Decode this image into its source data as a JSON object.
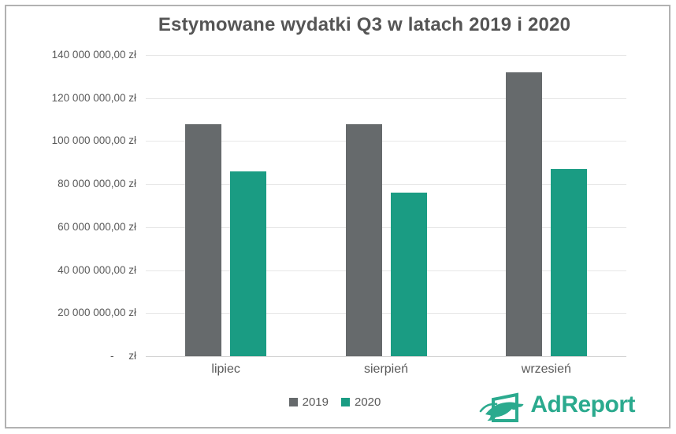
{
  "chart_data": {
    "type": "bar",
    "title": "Estymowane wydatki Q3 w latach 2019 i 2020",
    "categories": [
      "lipiec",
      "sierpień",
      "wrzesień"
    ],
    "series": [
      {
        "name": "2019",
        "color": "#666a6c",
        "values": [
          108000000,
          108000000,
          132000000
        ]
      },
      {
        "name": "2020",
        "color": "#1a9c83",
        "values": [
          86000000,
          76000000,
          87000000
        ]
      }
    ],
    "ylabel": "",
    "xlabel": "",
    "ylim": [
      0,
      140000000
    ],
    "y_tick_step": 20000000,
    "y_tick_labels": [
      "140 000 000,00 zł",
      "120 000 000,00 zł",
      "100 000 000,00 zł",
      "80 000 000,00 zł",
      "60 000 000,00 zł",
      "40 000 000,00 zł",
      "20 000 000,00 zł",
      "-     zł"
    ],
    "grid": true,
    "legend_position": "bottom",
    "legend_entries": [
      "2019",
      "2020"
    ]
  },
  "branding": {
    "logo_text": "AdReport",
    "logo_color": "#2baa8e"
  },
  "colors": {
    "text": "#595959",
    "title": "#555555",
    "gridline": "#e7e7e7",
    "axis_line": "#d3d3d3",
    "border": "#b2b2b2",
    "background": "#ffffff",
    "bar_2019": "#666a6c",
    "bar_2020": "#1a9c83"
  }
}
